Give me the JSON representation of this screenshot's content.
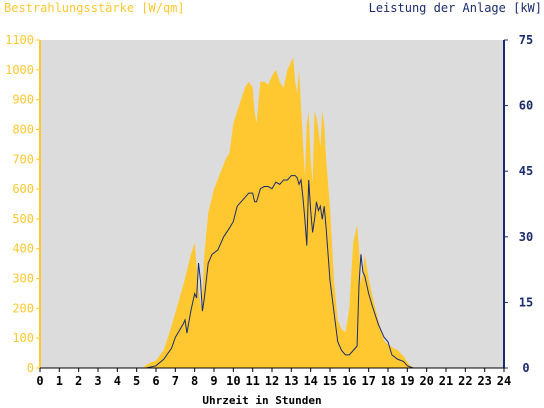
{
  "chart_data": {
    "type": "area",
    "left_title": "Bestrahlungsstärke [W/qm]",
    "right_title": "Leistung der Anlage [kW]",
    "xlabel": "Uhrzeit in Stunden",
    "xlim": [
      0,
      24
    ],
    "x_ticks": [
      0,
      1,
      2,
      3,
      4,
      5,
      6,
      7,
      8,
      9,
      10,
      11,
      12,
      13,
      14,
      15,
      16,
      17,
      18,
      19,
      20,
      21,
      22,
      23,
      24
    ],
    "ylim_left": [
      0,
      1100
    ],
    "y_ticks_left": [
      0,
      100,
      200,
      300,
      400,
      500,
      600,
      700,
      800,
      900,
      1000,
      1100
    ],
    "ylim_right": [
      0,
      75
    ],
    "y_ticks_right": [
      0,
      15,
      30,
      45,
      60,
      75
    ],
    "grid": false,
    "colors": {
      "plot_bg": "#dcdcdc",
      "irradiance": "#ffc830",
      "power": "#1a2c6e",
      "left_axis": "#ffc830",
      "right_axis": "#1a2c6e"
    },
    "series": [
      {
        "name": "Bestrahlungsstärke [W/qm]",
        "axis": "left",
        "x": [
          0,
          5.3,
          5.6,
          6.0,
          6.4,
          6.8,
          7.2,
          7.5,
          7.8,
          8.0,
          8.2,
          8.35,
          8.5,
          8.7,
          9.0,
          9.3,
          9.6,
          9.8,
          10.0,
          10.2,
          10.4,
          10.6,
          10.8,
          11.0,
          11.1,
          11.2,
          11.4,
          11.6,
          11.8,
          12.0,
          12.2,
          12.4,
          12.6,
          12.8,
          13.0,
          13.1,
          13.2,
          13.3,
          13.4,
          13.5,
          13.6,
          13.7,
          13.8,
          13.9,
          14.0,
          14.1,
          14.2,
          14.3,
          14.4,
          14.5,
          14.6,
          14.7,
          14.8,
          15.0,
          15.2,
          15.4,
          15.6,
          15.8,
          16.0,
          16.2,
          16.4,
          16.5,
          16.6,
          16.7,
          16.8,
          17.0,
          17.2,
          17.5,
          17.8,
          18.0,
          18.2,
          18.5,
          18.8,
          19.0,
          19.2,
          19.5,
          24
        ],
        "values": [
          0,
          0,
          15,
          25,
          60,
          140,
          230,
          300,
          380,
          420,
          260,
          200,
          380,
          520,
          600,
          650,
          700,
          720,
          820,
          860,
          900,
          940,
          960,
          940,
          860,
          820,
          960,
          960,
          950,
          980,
          1000,
          960,
          940,
          1000,
          1030,
          1040,
          960,
          920,
          1000,
          880,
          760,
          640,
          820,
          860,
          700,
          620,
          860,
          840,
          800,
          740,
          860,
          820,
          700,
          540,
          300,
          160,
          130,
          120,
          200,
          420,
          480,
          400,
          280,
          320,
          380,
          300,
          240,
          160,
          90,
          80,
          70,
          60,
          40,
          20,
          5,
          0,
          0
        ]
      },
      {
        "name": "Leistung der Anlage [kW]",
        "axis": "right",
        "x": [
          0,
          5.5,
          6.0,
          6.4,
          6.8,
          7.0,
          7.2,
          7.4,
          7.5,
          7.6,
          7.8,
          8.0,
          8.1,
          8.2,
          8.3,
          8.4,
          8.5,
          8.7,
          8.9,
          9.2,
          9.5,
          9.8,
          10.0,
          10.2,
          10.4,
          10.6,
          10.8,
          11.0,
          11.1,
          11.2,
          11.4,
          11.6,
          11.8,
          12.0,
          12.2,
          12.4,
          12.6,
          12.8,
          13.0,
          13.2,
          13.3,
          13.4,
          13.5,
          13.6,
          13.7,
          13.8,
          13.9,
          14.0,
          14.1,
          14.2,
          14.3,
          14.4,
          14.5,
          14.6,
          14.7,
          14.8,
          15.0,
          15.2,
          15.4,
          15.6,
          15.8,
          16.0,
          16.2,
          16.4,
          16.5,
          16.6,
          16.7,
          16.8,
          17.0,
          17.2,
          17.5,
          17.8,
          18.0,
          18.2,
          18.5,
          18.8,
          19.0,
          19.3,
          19.6,
          20.0,
          24
        ],
        "values": [
          0,
          0,
          0.5,
          2,
          4.5,
          7,
          8.5,
          10,
          11,
          8,
          13,
          17,
          16,
          24,
          20,
          13,
          16,
          24,
          26,
          27,
          30,
          32,
          33.5,
          37,
          38,
          39,
          40,
          40,
          38,
          38,
          41,
          41.5,
          41.5,
          41,
          42.5,
          42,
          43,
          43,
          44,
          44,
          43.5,
          42,
          43,
          39,
          34,
          28,
          43,
          36,
          31,
          34,
          38,
          36,
          37,
          34,
          37,
          32,
          20,
          13,
          6,
          4,
          3,
          3,
          4,
          5,
          19,
          26,
          22,
          21,
          17,
          14,
          10,
          7,
          6,
          3,
          2,
          1.5,
          0.5,
          0,
          0,
          0,
          0
        ]
      }
    ]
  }
}
